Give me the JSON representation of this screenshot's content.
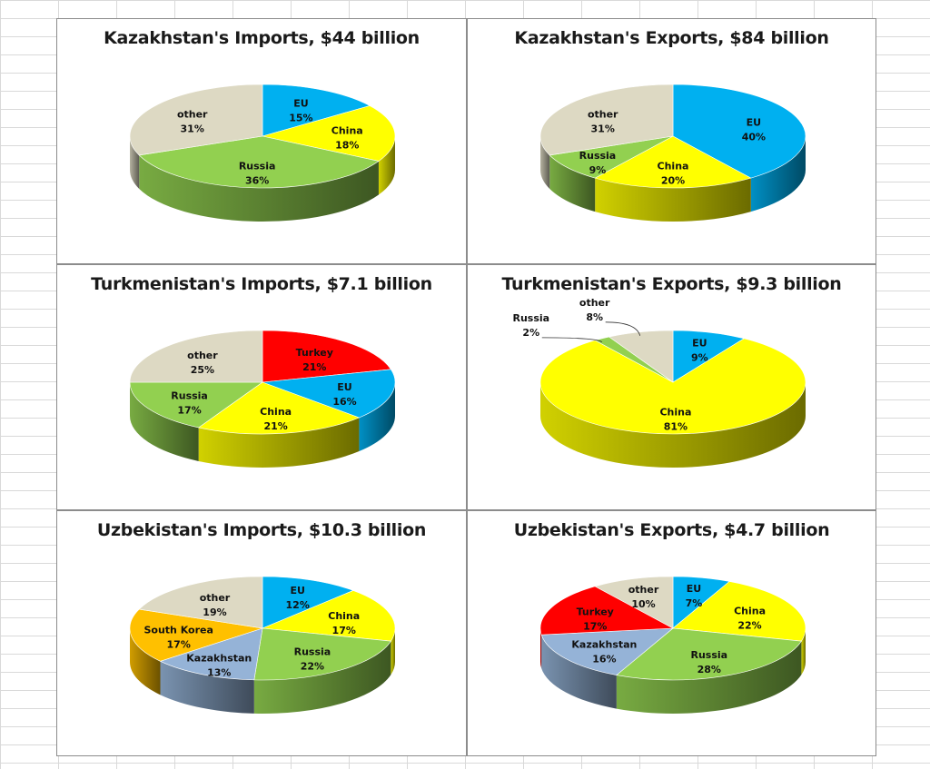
{
  "chart_data": [
    {
      "type": "pie",
      "title": "Kazakhstan's Imports, $44 billion",
      "slices": [
        {
          "name": "EU",
          "value": 15,
          "label": "15%",
          "color": "#00b0f0"
        },
        {
          "name": "China",
          "value": 18,
          "label": "18%",
          "color": "#ffff00"
        },
        {
          "name": "Russia",
          "value": 36,
          "label": "36%",
          "color": "#92d050"
        },
        {
          "name": "other",
          "value": 31,
          "label": "31%",
          "color": "#ddd9c3"
        }
      ]
    },
    {
      "type": "pie",
      "title": "Kazakhstan's Exports, $84 billion",
      "slices": [
        {
          "name": "EU",
          "value": 40,
          "label": "40%",
          "color": "#00b0f0"
        },
        {
          "name": "China",
          "value": 20,
          "label": "20%",
          "color": "#ffff00"
        },
        {
          "name": "Russia",
          "value": 9,
          "label": "9%",
          "color": "#92d050"
        },
        {
          "name": "other",
          "value": 31,
          "label": "31%",
          "color": "#ddd9c3"
        }
      ]
    },
    {
      "type": "pie",
      "title": "Turkmenistan's Imports, $7.1 billion",
      "slices": [
        {
          "name": "Turkey",
          "value": 21,
          "label": "21%",
          "color": "#ff0000"
        },
        {
          "name": "EU",
          "value": 16,
          "label": "16%",
          "color": "#00b0f0"
        },
        {
          "name": "China",
          "value": 21,
          "label": "21%",
          "color": "#ffff00"
        },
        {
          "name": "Russia",
          "value": 17,
          "label": "17%",
          "color": "#92d050"
        },
        {
          "name": "other",
          "value": 25,
          "label": "25%",
          "color": "#ddd9c3"
        }
      ]
    },
    {
      "type": "pie",
      "title": "Turkmenistan's Exports, $9.3 billion",
      "slices": [
        {
          "name": "EU",
          "value": 9,
          "label": "9%",
          "color": "#00b0f0"
        },
        {
          "name": "China",
          "value": 81,
          "label": "81%",
          "color": "#ffff00"
        },
        {
          "name": "Russia",
          "value": 2,
          "label": "2%",
          "color": "#92d050",
          "outside": true
        },
        {
          "name": "other",
          "value": 8,
          "label": "8%",
          "color": "#ddd9c3",
          "outside": true
        }
      ]
    },
    {
      "type": "pie",
      "title": "Uzbekistan's Imports, $10.3 billion",
      "slices": [
        {
          "name": "EU",
          "value": 12,
          "label": "12%",
          "color": "#00b0f0"
        },
        {
          "name": "China",
          "value": 17,
          "label": "17%",
          "color": "#ffff00"
        },
        {
          "name": "Russia",
          "value": 22,
          "label": "22%",
          "color": "#92d050"
        },
        {
          "name": "Kazakhstan",
          "value": 13,
          "label": "13%",
          "color": "#95b3d7"
        },
        {
          "name": "South Korea",
          "value": 17,
          "label": "17%",
          "color": "#ffc000"
        },
        {
          "name": "other",
          "value": 19,
          "label": "19%",
          "color": "#ddd9c3"
        }
      ]
    },
    {
      "type": "pie",
      "title": "Uzbekistan's Exports, $4.7 billion",
      "slices": [
        {
          "name": "EU",
          "value": 7,
          "label": "7%",
          "color": "#00b0f0"
        },
        {
          "name": "China",
          "value": 22,
          "label": "22%",
          "color": "#ffff00"
        },
        {
          "name": "Russia",
          "value": 28,
          "label": "28%",
          "color": "#92d050"
        },
        {
          "name": "Kazakhstan",
          "value": 16,
          "label": "16%",
          "color": "#95b3d7"
        },
        {
          "name": "Turkey",
          "value": 17,
          "label": "17%",
          "color": "#ff0000"
        },
        {
          "name": "other",
          "value": 10,
          "label": "10%",
          "color": "#ddd9c3"
        }
      ]
    }
  ]
}
